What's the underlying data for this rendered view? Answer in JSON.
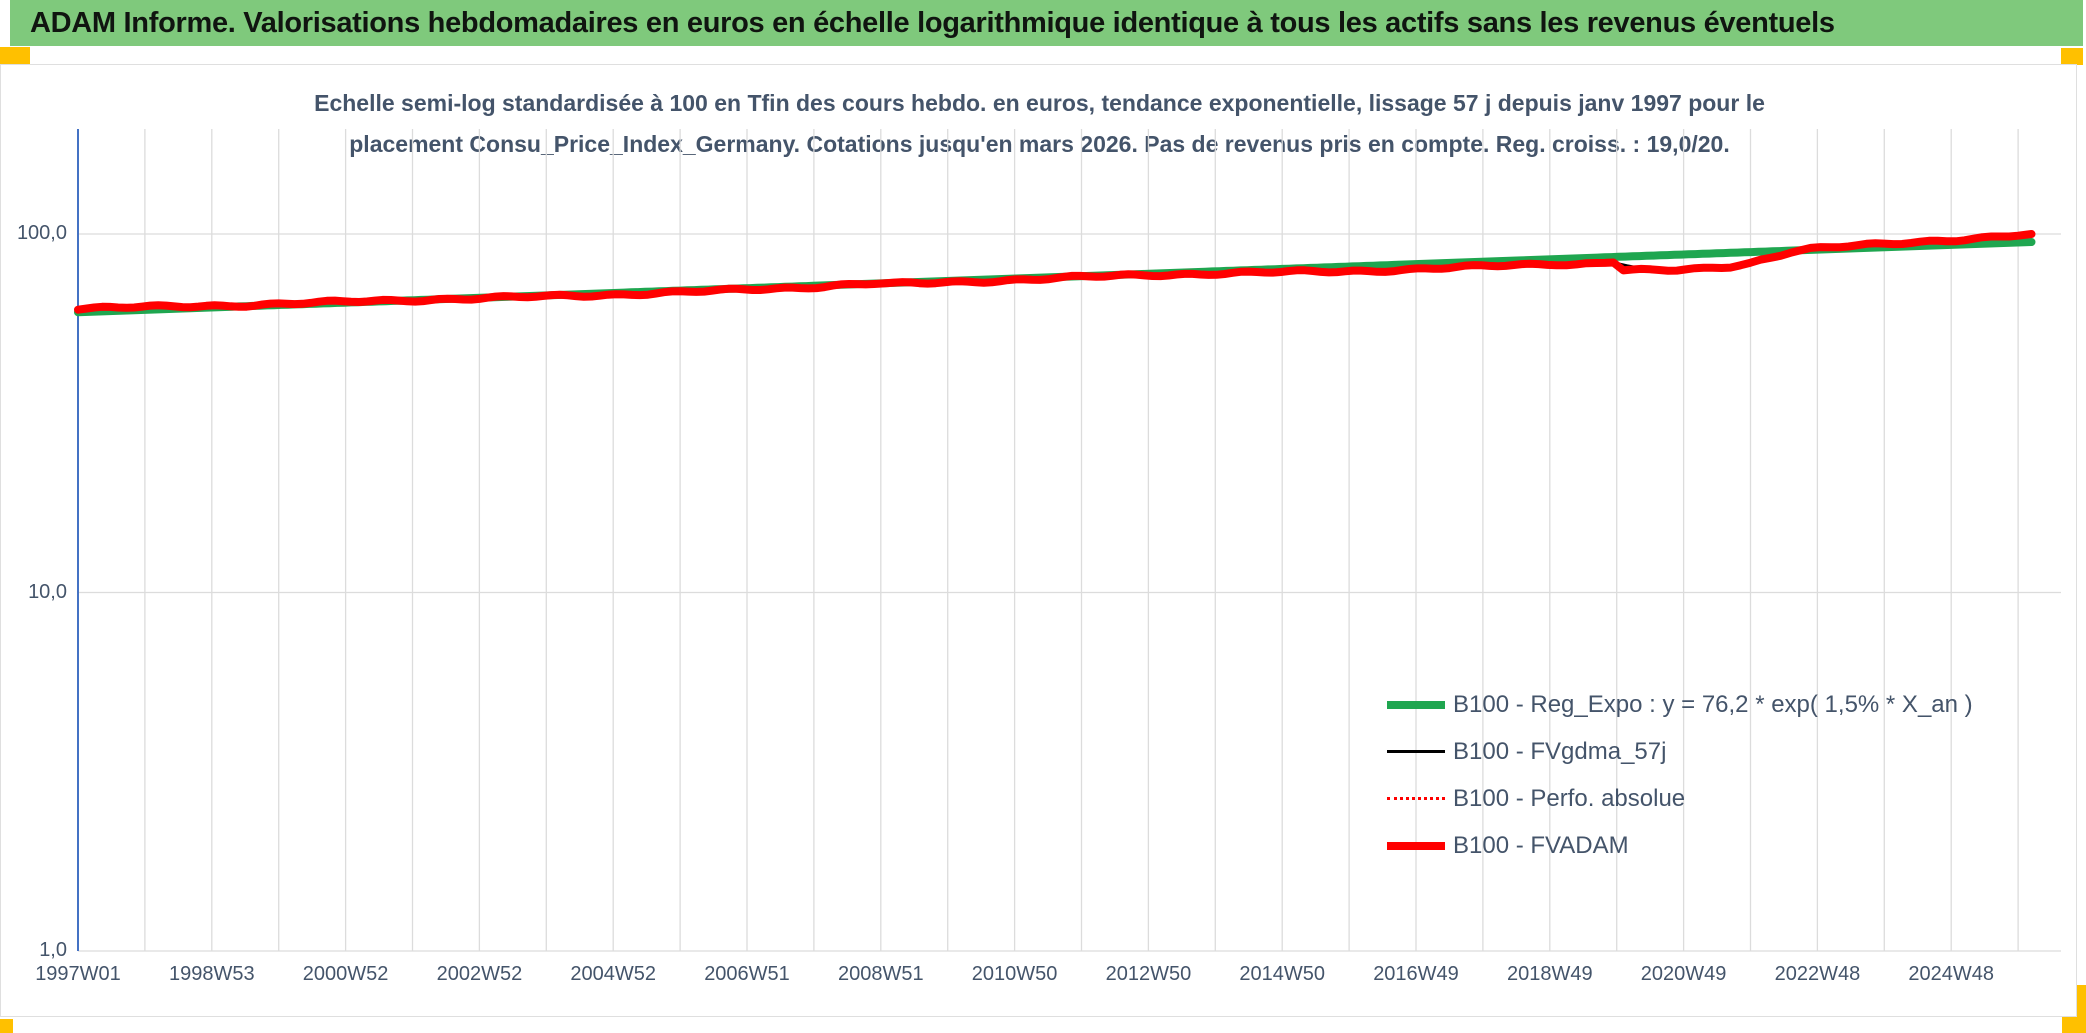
{
  "header": {
    "title": "ADAM Informe. Valorisations hebdomadaires en euros en échelle logarithmique identique à tous les actifs sans les revenus éventuels"
  },
  "colors": {
    "title_bar_bg": "#7fc97c",
    "corner_marker": "#ffc000",
    "axis_line": "#4472c4",
    "gridline": "#dcdcdc",
    "label_text": "#44546a",
    "series_green": "#1fa650",
    "series_red": "#ff0000",
    "series_black": "#000000"
  },
  "chart_data": {
    "type": "line",
    "title_lines": [
      "Echelle semi-log standardisée à 100 en Tfin des cours hebdo. en euros, tendance exponentielle, lissage 57 j depuis janv 1997 pour le",
      "placement Consu_Price_Index_Germany. Cotations jusqu'en mars 2026. Pas de revenus pris en compte. Reg. croiss. : 19,0/20."
    ],
    "y_axis": {
      "scale": "log",
      "ticks": [
        {
          "label": "100,0",
          "value": 100
        },
        {
          "label": "10,0",
          "value": 10
        },
        {
          "label": "1,0",
          "value": 1
        }
      ]
    },
    "x_axis": {
      "unit": "week",
      "tick_labels": [
        "1997W01",
        "1998W53",
        "2000W52",
        "2002W52",
        "2004W52",
        "2006W51",
        "2008W51",
        "2010W50",
        "2012W50",
        "2014W50",
        "2016W49",
        "2018W49",
        "2020W49",
        "2022W48",
        "2024W48"
      ],
      "tick_years": [
        1997,
        1999,
        2001,
        2003,
        2005,
        2007,
        2009,
        2011,
        2013,
        2015,
        2017,
        2019,
        2021,
        2023,
        2025
      ],
      "gridline_years": [
        1997,
        1998,
        1999,
        2000,
        2001,
        2002,
        2003,
        2004,
        2005,
        2006,
        2007,
        2008,
        2009,
        2010,
        2011,
        2012,
        2013,
        2014,
        2015,
        2016,
        2017,
        2018,
        2019,
        2020,
        2021,
        2022,
        2023,
        2024,
        2025,
        2026
      ],
      "range_years": [
        1997.0,
        2026.3
      ]
    },
    "legend_position": "bottom-right",
    "draw_order": [
      2,
      1,
      0,
      3
    ],
    "series": [
      {
        "name": "B100 - Reg_Expo : y = 76,2 * exp( 1,5% *  X_an )",
        "color": "#1fa650",
        "style": "solid",
        "width": 8,
        "jitter": false,
        "points": [
          [
            1997.0,
            60.5
          ],
          [
            2026.2,
            95.0
          ]
        ]
      },
      {
        "name": "B100 - FVgdma_57j",
        "color": "#000000",
        "style": "solid",
        "width": 3,
        "jitter": false,
        "points": [
          [
            1997.0,
            61.8
          ],
          [
            1999,
            63.1
          ],
          [
            2001,
            64.7
          ],
          [
            2003,
            66.1
          ],
          [
            2005,
            67.9
          ],
          [
            2007,
            70.0
          ],
          [
            2009,
            72.6
          ],
          [
            2011,
            74.7
          ],
          [
            2013,
            76.8
          ],
          [
            2015,
            78.2
          ],
          [
            2017,
            80.2
          ],
          [
            2019,
            82.6
          ],
          [
            2019.9,
            83.6
          ],
          [
            2020.15,
            81.6
          ],
          [
            2020.45,
            79.6
          ],
          [
            2020.9,
            79.1
          ],
          [
            2021.3,
            79.9
          ],
          [
            2021.7,
            81.2
          ],
          [
            2022.1,
            83.8
          ],
          [
            2022.5,
            87.6
          ],
          [
            2022.9,
            90.5
          ],
          [
            2023.5,
            92.3
          ],
          [
            2024.2,
            94.1
          ],
          [
            2025.0,
            96.4
          ],
          [
            2026.0,
            99.0
          ],
          [
            2026.2,
            99.7
          ]
        ]
      },
      {
        "name": "B100 - Perfo. absolue",
        "color": "#ff0000",
        "style": "dotted",
        "width": 2.5,
        "jitter": true,
        "same_points_as": 3,
        "points": []
      },
      {
        "name": "B100 - FVADAM",
        "color": "#ff0000",
        "style": "solid",
        "width": 8,
        "jitter": true,
        "points": [
          [
            1997.0,
            62.0
          ],
          [
            1997.6,
            62.3
          ],
          [
            1998.2,
            62.6
          ],
          [
            1998.8,
            62.9
          ],
          [
            1999.4,
            63.3
          ],
          [
            2000.0,
            63.8
          ],
          [
            2000.6,
            64.3
          ],
          [
            2001.2,
            64.8
          ],
          [
            2001.8,
            65.3
          ],
          [
            2002.4,
            65.8
          ],
          [
            2003.0,
            66.2
          ],
          [
            2003.6,
            66.6
          ],
          [
            2004.2,
            67.1
          ],
          [
            2004.8,
            67.6
          ],
          [
            2005.4,
            68.2
          ],
          [
            2006.0,
            68.8
          ],
          [
            2006.6,
            69.4
          ],
          [
            2007.2,
            70.2
          ],
          [
            2007.8,
            71.0
          ],
          [
            2008.4,
            72.1
          ],
          [
            2008.9,
            72.8
          ],
          [
            2009.2,
            72.5
          ],
          [
            2009.7,
            72.9
          ],
          [
            2010.3,
            73.6
          ],
          [
            2010.9,
            74.4
          ],
          [
            2011.5,
            75.2
          ],
          [
            2012.1,
            75.9
          ],
          [
            2012.7,
            76.5
          ],
          [
            2013.3,
            77.1
          ],
          [
            2013.9,
            77.6
          ],
          [
            2014.5,
            78.0
          ],
          [
            2015.1,
            78.3
          ],
          [
            2015.7,
            78.6
          ],
          [
            2016.3,
            79.0
          ],
          [
            2016.9,
            79.7
          ],
          [
            2017.5,
            80.5
          ],
          [
            2018.1,
            81.3
          ],
          [
            2018.7,
            82.2
          ],
          [
            2019.1,
            82.7
          ],
          [
            2019.4,
            82.4
          ],
          [
            2019.7,
            83.1
          ],
          [
            2019.95,
            83.9
          ],
          [
            2020.1,
            79.4
          ],
          [
            2020.5,
            79.0
          ],
          [
            2020.9,
            79.1
          ],
          [
            2021.3,
            79.9
          ],
          [
            2021.7,
            81.3
          ],
          [
            2022.0,
            83.2
          ],
          [
            2022.3,
            86.2
          ],
          [
            2022.6,
            89.4
          ],
          [
            2022.9,
            90.9
          ],
          [
            2023.2,
            91.7
          ],
          [
            2023.6,
            92.6
          ],
          [
            2024.0,
            93.6
          ],
          [
            2024.4,
            94.7
          ],
          [
            2024.8,
            95.8
          ],
          [
            2025.2,
            96.9
          ],
          [
            2025.6,
            98.0
          ],
          [
            2026.0,
            99.2
          ],
          [
            2026.2,
            100.0
          ]
        ]
      }
    ]
  }
}
